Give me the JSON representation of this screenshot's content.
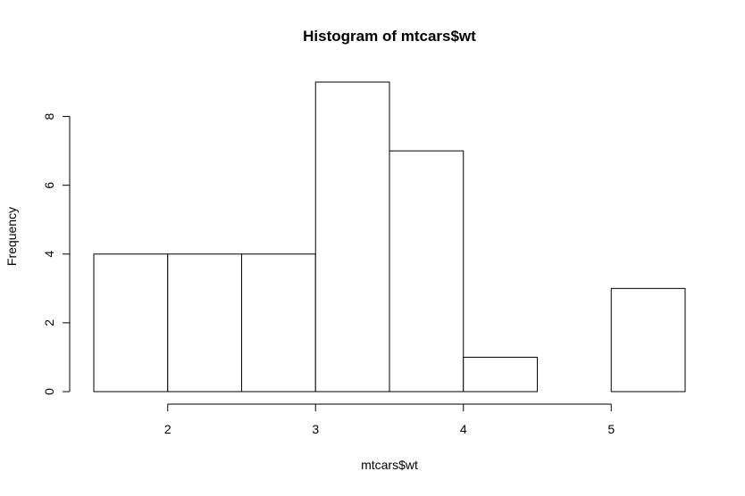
{
  "chart_data": {
    "type": "bar",
    "subtype": "histogram",
    "title": "Histogram of mtcars$wt",
    "xlabel": "mtcars$wt",
    "ylabel": "Frequency",
    "bins": [
      {
        "x0": 1.5,
        "x1": 2.0,
        "count": 4
      },
      {
        "x0": 2.0,
        "x1": 2.5,
        "count": 4
      },
      {
        "x0": 2.5,
        "x1": 3.0,
        "count": 4
      },
      {
        "x0": 3.0,
        "x1": 3.5,
        "count": 9
      },
      {
        "x0": 3.5,
        "x1": 4.0,
        "count": 7
      },
      {
        "x0": 4.0,
        "x1": 4.5,
        "count": 1
      },
      {
        "x0": 4.5,
        "x1": 5.0,
        "count": 0
      },
      {
        "x0": 5.0,
        "x1": 5.5,
        "count": 3
      }
    ],
    "xticks": [
      2,
      3,
      4,
      5
    ],
    "xtick_labels": [
      "2",
      "3",
      "4",
      "5"
    ],
    "yticks": [
      0,
      2,
      4,
      6,
      8
    ],
    "ytick_labels": [
      "0",
      "2",
      "4",
      "6",
      "8"
    ],
    "xlim": [
      1.5,
      5.5
    ],
    "ylim": [
      0,
      9
    ],
    "grid": false,
    "bar_fill": "#ffffff",
    "bar_stroke": "#000000"
  }
}
